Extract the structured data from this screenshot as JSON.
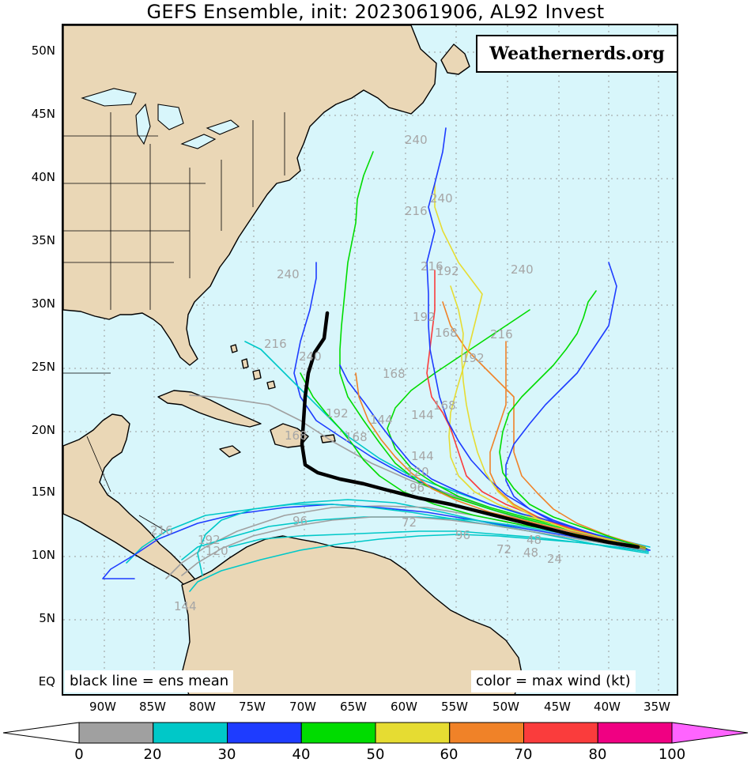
{
  "title": "GEFS Ensemble, init: 2023061906, AL92 Invest",
  "brand": "Weathernerds.org",
  "footnotes": {
    "left": "black line = ens mean",
    "right": "color = max wind (kt)"
  },
  "map": {
    "lat_labels": [
      "50N",
      "45N",
      "40N",
      "35N",
      "30N",
      "25N",
      "20N",
      "15N",
      "10N",
      "5N",
      "EQ"
    ],
    "lon_labels": [
      "90W",
      "85W",
      "80W",
      "75W",
      "70W",
      "65W",
      "60W",
      "55W",
      "50W",
      "45W",
      "40W",
      "35W"
    ],
    "colors": {
      "ocean": "#d8f6fb",
      "land": "#ead7b6",
      "coast": "#000000",
      "grid": "#9a9a9a",
      "mean_track": "#000000"
    },
    "hour_labels": [
      {
        "text": "240",
        "color": "#a6a6a6"
      },
      {
        "text": "240",
        "color": "#a6a6a6"
      },
      {
        "text": "216",
        "color": "#a6a6a6"
      },
      {
        "text": "240",
        "color": "#a6a6a6"
      },
      {
        "text": "216",
        "color": "#a6a6a6"
      },
      {
        "text": "192",
        "color": "#a6a6a6"
      },
      {
        "text": "240",
        "color": "#a6a6a6"
      },
      {
        "text": "216",
        "color": "#a6a6a6"
      },
      {
        "text": "192",
        "color": "#a6a6a6"
      },
      {
        "text": "168",
        "color": "#a6a6a6"
      },
      {
        "text": "216",
        "color": "#a6a6a6"
      },
      {
        "text": "192",
        "color": "#a6a6a6"
      },
      {
        "text": "168",
        "color": "#a6a6a6"
      },
      {
        "text": "240",
        "color": "#a6a6a6"
      },
      {
        "text": "168",
        "color": "#a6a6a6"
      },
      {
        "text": "192",
        "color": "#a6a6a6"
      },
      {
        "text": "144",
        "color": "#a6a6a6"
      },
      {
        "text": "144",
        "color": "#a6a6a6"
      },
      {
        "text": "168",
        "color": "#a6a6a6"
      },
      {
        "text": "144",
        "color": "#a6a6a6"
      },
      {
        "text": "120",
        "color": "#a6a6a6"
      },
      {
        "text": "96",
        "color": "#a6a6a6"
      },
      {
        "text": "168",
        "color": "#a6a6a6"
      },
      {
        "text": "96",
        "color": "#a6a6a6"
      },
      {
        "text": "72",
        "color": "#a6a6a6"
      },
      {
        "text": "48",
        "color": "#a6a6a6"
      },
      {
        "text": "24",
        "color": "#a6a6a6"
      },
      {
        "text": "216",
        "color": "#a6a6a6"
      },
      {
        "text": "192",
        "color": "#a6a6a6"
      },
      {
        "text": "120",
        "color": "#a6a6a6"
      },
      {
        "text": "144",
        "color": "#a6a6a6"
      },
      {
        "text": "96",
        "color": "#a6a6a6"
      },
      {
        "text": "72",
        "color": "#a6a6a6"
      },
      {
        "text": "48",
        "color": "#a6a6a6"
      }
    ]
  },
  "colorbar": {
    "unit": "kt",
    "ticks": [
      "0",
      "20",
      "30",
      "40",
      "50",
      "60",
      "70",
      "80",
      "100"
    ],
    "bins": [
      {
        "from": 0,
        "to": 20,
        "color": "#a0a0a0"
      },
      {
        "from": 20,
        "to": 30,
        "color": "#00c8c8"
      },
      {
        "from": 30,
        "to": 40,
        "color": "#1e3cff"
      },
      {
        "from": 40,
        "to": 50,
        "color": "#00dc00"
      },
      {
        "from": 50,
        "to": 60,
        "color": "#e6dc32"
      },
      {
        "from": 60,
        "to": 70,
        "color": "#f08228"
      },
      {
        "from": 70,
        "to": 80,
        "color": "#fa3c3c"
      },
      {
        "from": 80,
        "to": 100,
        "color": "#f00082"
      }
    ],
    "under_color": "#ffffff",
    "over_color": "#ff64ff"
  }
}
